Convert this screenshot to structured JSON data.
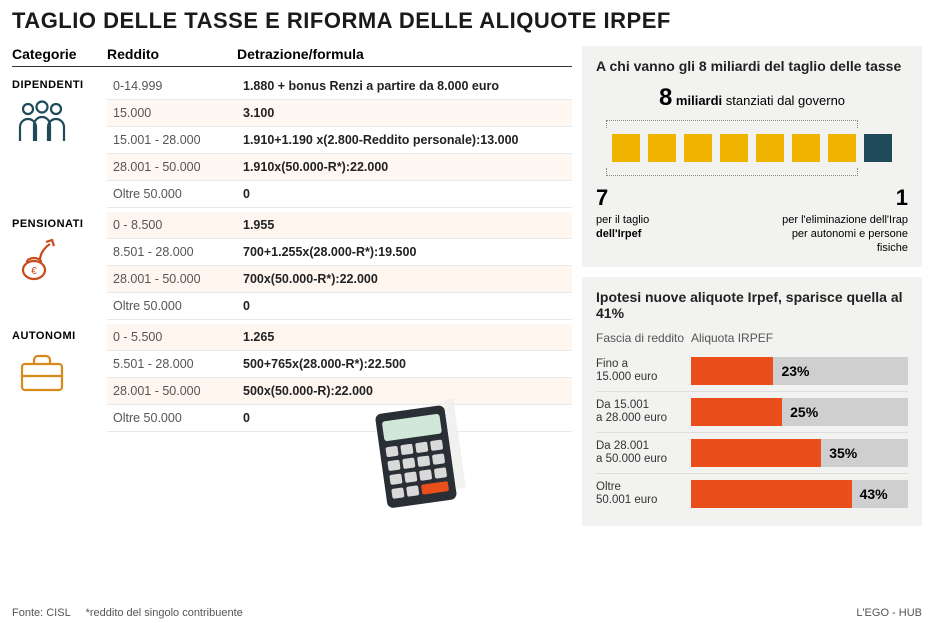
{
  "title": "TAGLIO DELLE TASSE E RIFORMA DELLE ALIQUOTE IRPEF",
  "table": {
    "headers": {
      "cat": "Categorie",
      "red": "Reddito",
      "det": "Detrazione/formula"
    },
    "groups": [
      {
        "name": "DIPENDENTI",
        "icon": "people-icon",
        "icon_color": "#1e4a5a",
        "rows": [
          {
            "reddito": "0-14.999",
            "detrazione": "1.880 + bonus Renzi a partire da 8.000 euro",
            "alt": false
          },
          {
            "reddito": "15.000",
            "detrazione": "3.100",
            "alt": true
          },
          {
            "reddito": "15.001 - 28.000",
            "detrazione": "1.910+1.190 x(2.800-Reddito personale):13.000",
            "alt": false
          },
          {
            "reddito": "28.001 - 50.000",
            "detrazione": "1.910x(50.000-R*):22.000",
            "alt": true
          },
          {
            "reddito": "Oltre 50.000",
            "detrazione": "0",
            "alt": false
          }
        ]
      },
      {
        "name": "PENSIONATI",
        "icon": "pension-icon",
        "icon_color": "#c94a1a",
        "rows": [
          {
            "reddito": "0 - 8.500",
            "detrazione": "1.955",
            "alt": true
          },
          {
            "reddito": "8.501 - 28.000",
            "detrazione": "700+1.255x(28.000-R*):19.500",
            "alt": false
          },
          {
            "reddito": "28.001 - 50.000",
            "detrazione": "700x(50.000-R*):22.000",
            "alt": true
          },
          {
            "reddito": "Oltre 50.000",
            "detrazione": "0",
            "alt": false
          }
        ]
      },
      {
        "name": "AUTONOMI",
        "icon": "briefcase-icon",
        "icon_color": "#d68a1a",
        "rows": [
          {
            "reddito": "0 - 5.500",
            "detrazione": "1.265",
            "alt": true
          },
          {
            "reddito": "5.501 - 28.000",
            "detrazione": "500+765x(28.000-R*):22.500",
            "alt": false
          },
          {
            "reddito": "28.001 - 50.000",
            "detrazione": "500x(50.000-R):22.000",
            "alt": true
          },
          {
            "reddito": "Oltre 50.000",
            "detrazione": "0",
            "alt": false
          }
        ]
      }
    ]
  },
  "allocation": {
    "title": "A chi vanno gli 8 miliardi del taglio delle tasse",
    "headline_num": "8",
    "headline_unit": "miliardi",
    "headline_rest": "stanziati dal governo",
    "squares": {
      "yellow": 7,
      "dark": 1,
      "yellow_color": "#f0b400",
      "dark_color": "#1e4a5a"
    },
    "left": {
      "num": "7",
      "line1": "per il taglio",
      "line2": "dell'Irpef"
    },
    "right": {
      "num": "1",
      "line1": "per l'eliminazione dell'Irap",
      "line2": "per autonomi e persone fisiche"
    }
  },
  "brackets": {
    "title": "Ipotesi nuove aliquote Irpef, sparisce quella al 41%",
    "col1": "Fascia di reddito",
    "col2": "Aliquota IRPEF",
    "bar_color": "#e94e1b",
    "track_color": "#cfcfcf",
    "rows": [
      {
        "label1": "Fino a",
        "label2": "15.000 euro",
        "pct": 23,
        "width_pct": 38
      },
      {
        "label1": "Da 15.001",
        "label2": "a 28.000 euro",
        "pct": 25,
        "width_pct": 42
      },
      {
        "label1": "Da 28.001",
        "label2": "a 50.000 euro",
        "pct": 35,
        "width_pct": 60
      },
      {
        "label1": "Oltre",
        "label2": "50.001 euro",
        "pct": 43,
        "width_pct": 74
      }
    ]
  },
  "footer": {
    "source_label": "Fonte: CISL",
    "note": "*reddito del singolo contribuente",
    "credit": "L'EGO - HUB"
  }
}
